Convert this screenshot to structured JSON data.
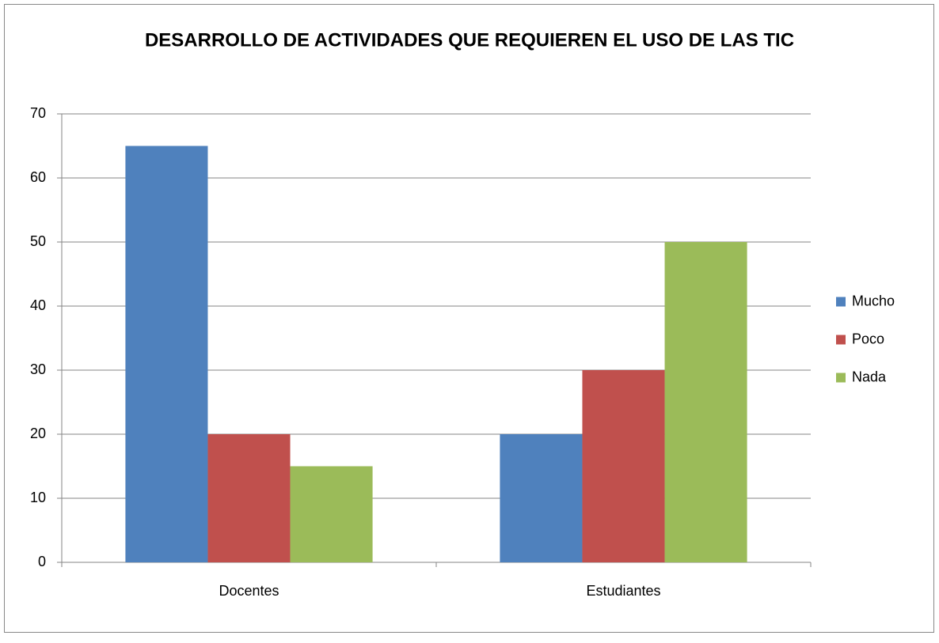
{
  "chart_data": {
    "type": "bar",
    "title": "DESARROLLO DE ACTIVIDADES QUE REQUIEREN EL USO DE LAS TIC",
    "categories": [
      "Docentes",
      "Estudiantes"
    ],
    "series": [
      {
        "name": "Mucho",
        "color": "#4f81bd",
        "values": [
          65,
          20
        ]
      },
      {
        "name": "Poco",
        "color": "#c0504d",
        "values": [
          20,
          30
        ]
      },
      {
        "name": "Nada",
        "color": "#9bbb59",
        "values": [
          15,
          50
        ]
      }
    ],
    "ylim": [
      0,
      70
    ],
    "yticks": [
      0,
      10,
      20,
      30,
      40,
      50,
      60,
      70
    ],
    "grid": true,
    "legend": "right"
  }
}
